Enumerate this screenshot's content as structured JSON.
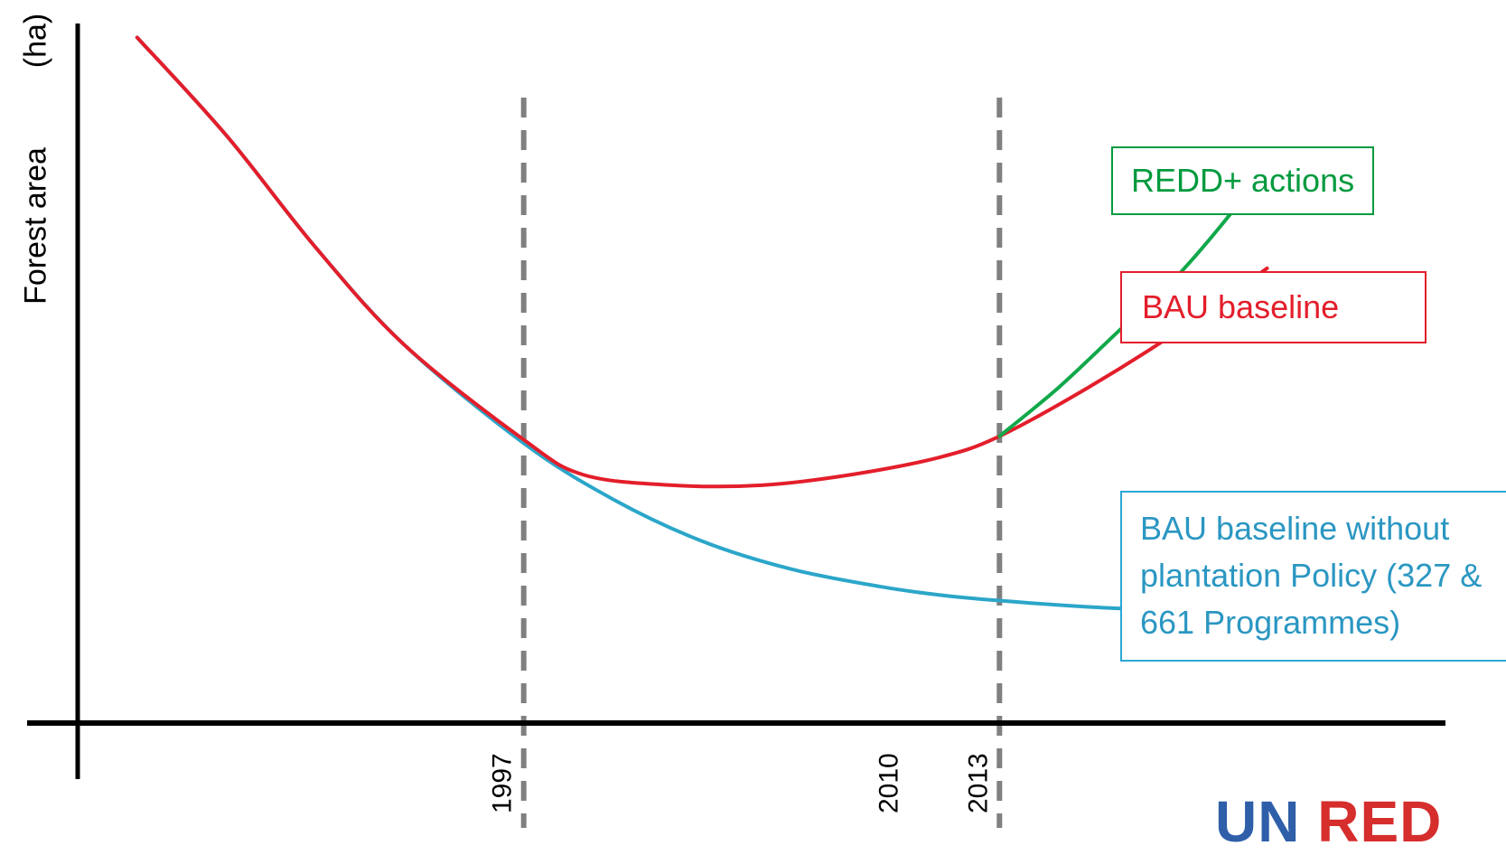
{
  "chart_data": {
    "type": "line",
    "title": "",
    "ylabel": "Forest area",
    "yunit": "(ha)",
    "xlabel": "",
    "xlim": [
      1982,
      2028
    ],
    "ylim": [
      0,
      100
    ],
    "x_ticks": [
      {
        "label": "1997",
        "x": 1997
      },
      {
        "label": "2010",
        "x": 2010
      },
      {
        "label": "2013",
        "x": 2013
      }
    ],
    "reference_lines": [
      1997,
      2013
    ],
    "series": [
      {
        "name": "BAU baseline without plantation Policy (327 & 661 Programmes)",
        "color": "#2ba6c9",
        "x": [
          1984,
          1987,
          1990,
          1993,
          1997,
          2000,
          2003,
          2006,
          2009,
          2011,
          2013,
          2016,
          2019,
          2022
        ],
        "y": [
          98,
          84,
          68,
          54,
          40,
          32,
          26,
          22,
          19.5,
          18.3,
          17.5,
          16.6,
          16,
          15.2
        ]
      },
      {
        "name": "BAU baseline",
        "color": "#e31e2b",
        "x": [
          1984,
          1987,
          1990,
          1993,
          1997,
          1999,
          2002,
          2005,
          2008,
          2011,
          2013,
          2016,
          2019,
          2022
        ],
        "y": [
          98,
          84,
          68,
          54,
          40.5,
          35.5,
          34,
          34,
          35.5,
          38,
          41,
          48,
          56,
          65
        ]
      },
      {
        "name": "REDD+ actions",
        "color": "#11a84a",
        "x": [
          2013,
          2015,
          2017,
          2019,
          2021,
          2022
        ],
        "y": [
          41,
          48,
          56,
          64,
          74,
          80
        ]
      }
    ]
  },
  "legend": {
    "redd_actions": "REDD+ actions",
    "bau_baseline": "BAU baseline",
    "bau_no_plantation": "BAU baseline without plantation Policy (327 & 661 Programmes)"
  },
  "logo": {
    "part1": "UN",
    "part2": "RED"
  },
  "colors": {
    "axis": "#000000",
    "ref_line": "#808080"
  }
}
